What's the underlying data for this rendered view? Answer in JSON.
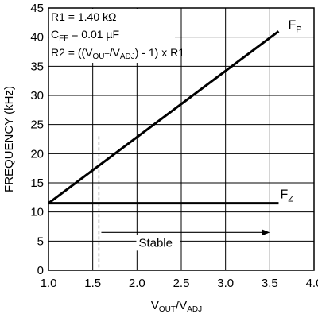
{
  "chart_data": {
    "type": "line",
    "xlabel": {
      "main": "V",
      "sub1": "OUT",
      "mid": "/V",
      "sub2": "ADJ"
    },
    "ylabel": "FREQUENCY (kHz)",
    "xlim": [
      1.0,
      4.0
    ],
    "ylim": [
      0,
      45
    ],
    "x_ticks": [
      "1.0",
      "1.5",
      "2.0",
      "2.5",
      "3.0",
      "3.5",
      "4.0"
    ],
    "y_ticks": [
      "0",
      "5",
      "10",
      "15",
      "20",
      "25",
      "30",
      "35",
      "40",
      "45"
    ],
    "x_tick_values": [
      1.0,
      1.5,
      2.0,
      2.5,
      3.0,
      3.5,
      4.0
    ],
    "y_tick_values": [
      0,
      5,
      10,
      15,
      20,
      25,
      30,
      35,
      40,
      45
    ],
    "grid": true,
    "series": [
      {
        "name": "FP",
        "label_main": "F",
        "label_sub": "P",
        "x": [
          1.0,
          3.6
        ],
        "y": [
          11.5,
          41
        ]
      },
      {
        "name": "FZ",
        "label_main": "F",
        "label_sub": "Z",
        "x": [
          1.0,
          3.6
        ],
        "y": [
          11.5,
          11.5
        ]
      }
    ],
    "annotations": {
      "r1": "R1 = 1.40 kΩ",
      "cff_main": "C",
      "cff_sub": "FF",
      "cff_rest": " = 0.01 µF",
      "r2_a": "R2 = ((V",
      "r2_sub1": "OUT",
      "r2_b": "/V",
      "r2_sub2": "ADJ",
      "r2_c": ") - 1) x R1"
    },
    "stable": {
      "label": "Stable",
      "x_start": 1.57,
      "x_end": 3.5,
      "y": 6.5
    },
    "boundary": {
      "x": 1.57,
      "y_top": 23
    }
  }
}
